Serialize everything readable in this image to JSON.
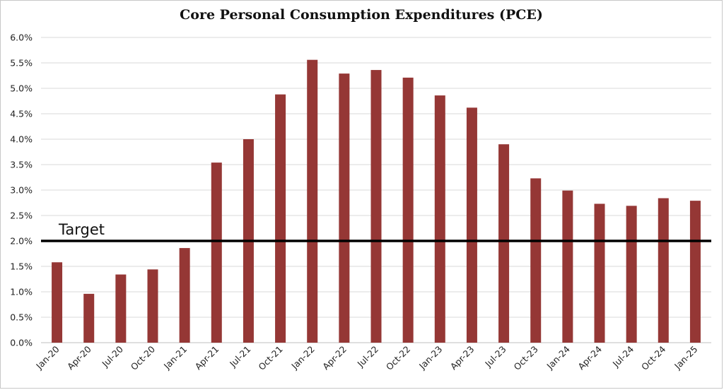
{
  "chart_data": {
    "type": "bar",
    "title": "Core Personal Consumption Expenditures (PCE)",
    "xlabel": "",
    "ylabel": "",
    "categories": [
      "Jan-20",
      "Apr-20",
      "Jul-20",
      "Oct-20",
      "Jan-21",
      "Apr-21",
      "Jul-21",
      "Oct-21",
      "Jan-22",
      "Apr-22",
      "Jul-22",
      "Oct-22",
      "Jan-23",
      "Apr-23",
      "Jul-23",
      "Oct-23",
      "Jan-24",
      "Apr-24",
      "Jul-24",
      "Oct-24",
      "Jan-25"
    ],
    "values": [
      1.58,
      0.96,
      1.34,
      1.44,
      1.86,
      3.54,
      4.0,
      4.88,
      5.56,
      5.29,
      5.36,
      5.21,
      4.86,
      4.62,
      3.9,
      3.23,
      2.99,
      2.73,
      2.69,
      2.84,
      2.79
    ],
    "ylim": [
      0,
      6
    ],
    "y_ticks": [
      "0.0%",
      "0.5%",
      "1.0%",
      "1.5%",
      "2.0%",
      "2.5%",
      "3.0%",
      "3.5%",
      "4.0%",
      "4.5%",
      "5.0%",
      "5.5%",
      "6.0%"
    ],
    "y_tick_values": [
      0,
      0.5,
      1,
      1.5,
      2,
      2.5,
      3,
      3.5,
      4,
      4.5,
      5,
      5.5,
      6
    ],
    "grid": true,
    "bar_color": "#953735",
    "target": {
      "label": "Target",
      "value": 2.0,
      "color": "#000000"
    }
  }
}
